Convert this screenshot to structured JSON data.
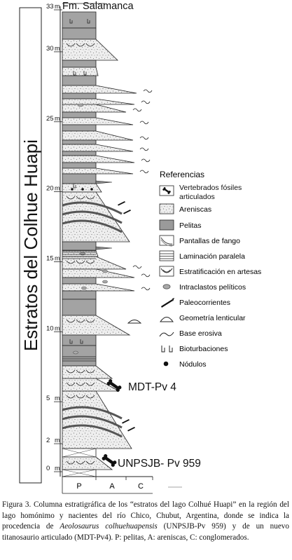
{
  "colors": {
    "pelitas": "#a3a3a3",
    "areniscas": "#e9e9e9",
    "line": "#222222",
    "gray_band": "#555555"
  },
  "column": {
    "title": "Estratos del Colhue Huapi",
    "top_unit": "Fm. Salamanca",
    "scale_unit": "m",
    "scale_labels": [
      "0",
      "2",
      "5",
      "10",
      "15",
      "20",
      "25",
      "30",
      "33"
    ]
  },
  "grain_axis": {
    "labels": [
      "P",
      "A",
      "C"
    ]
  },
  "specimens": [
    {
      "label": "MDT-Pv 4",
      "level_m": 4.9
    },
    {
      "label": "UNPSJB- Pv 959",
      "level_m": 0.2
    }
  ],
  "legend": {
    "title": "Referencias",
    "items": [
      {
        "icon": "bone-icon",
        "label": "Vertebrados fósiles articulados"
      },
      {
        "icon": "sandstone-icon",
        "label": "Areniscas"
      },
      {
        "icon": "mudstone-icon",
        "label": "Pelitas"
      },
      {
        "icon": "mud-drape-icon",
        "label": "Pantallas de fango"
      },
      {
        "icon": "parallel-lamination-icon",
        "label": "Laminación paralela"
      },
      {
        "icon": "trough-cross-icon",
        "label": "Estratificación en artesas"
      },
      {
        "icon": "intraclast-icon",
        "label": "Intraclastos pelíticos"
      },
      {
        "icon": "paleocurrent-icon",
        "label": "Paleocorrientes"
      },
      {
        "icon": "lenticular-icon",
        "label": "Geometría lenticular"
      },
      {
        "icon": "erosive-base-icon",
        "label": "Base erosiva"
      },
      {
        "icon": "bioturbation-icon",
        "label": "Bioturbaciones"
      },
      {
        "icon": "nodule-icon",
        "label": "Nódulos"
      }
    ]
  },
  "caption": {
    "prefix": "Figura 3. Columna estratigráfica de los “estratos del lago Colhué Huapi” en la región del lago homónimo y nacientes del río Chico, Chubut, Argentina, donde se indica la procedencia de ",
    "species": "Aeolosaurus colhuehuapensis",
    "suffix": " (UNPSJB-Pv 959) y de un nuevo titanosaurio articulado (MDT-Pv4). P: pelitas, A: areniscas, C: conglomerados."
  }
}
